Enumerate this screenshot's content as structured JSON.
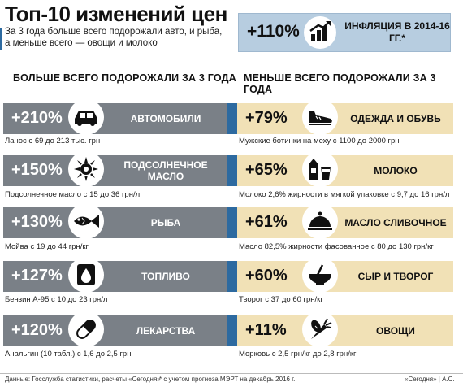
{
  "header": {
    "title": "Топ-10 изменений цен",
    "subtitle": "За 3 года больше всего подорожали авто, и рыба, а меньше всего — овощи и молоко"
  },
  "inflation": {
    "value": "+110%",
    "label": "ИНФЛЯЦИЯ В 2014-16 ГГ.*",
    "icon": "chart-growth-icon"
  },
  "left_column": {
    "heading": "БОЛЬШЕ ВСЕГО ПОДОРОЖАЛИ ЗА 3 ГОДА",
    "items": [
      {
        "pct": "+210%",
        "label": "АВТОМОБИЛИ",
        "icon": "car-icon",
        "note": "Ланос с 69 до 213 тыс. грн"
      },
      {
        "pct": "+150%",
        "label": "ПОДСОЛНЕЧНОЕ МАСЛО",
        "icon": "sunflower-icon",
        "note": "Подсолнечное масло с 15 до 36 грн/л"
      },
      {
        "pct": "+130%",
        "label": "РЫБА",
        "icon": "fish-icon",
        "note": "Мойва с 19 до 44 грн/кг"
      },
      {
        "pct": "+127%",
        "label": "ТОПЛИВО",
        "icon": "fuel-drop-icon",
        "note": "Бензин А-95 с 10 до 23 грн/л"
      },
      {
        "pct": "+120%",
        "label": "ЛЕКАРСТВА",
        "icon": "pill-icon",
        "note": "Анальгин (10 табл.) с 1,6 до 2,5 грн"
      }
    ]
  },
  "right_column": {
    "heading": "МЕНЬШЕ ВСЕГО ПОДОРОЖАЛИ ЗА 3 ГОДА",
    "items": [
      {
        "pct": "+79%",
        "label": "ОДЕЖДА И ОБУВЬ",
        "icon": "shoe-icon",
        "note": "Мужские ботинки на меху с 1100 до 2000 грн"
      },
      {
        "pct": "+65%",
        "label": "МОЛОКО",
        "icon": "milk-icon",
        "note": "Молоко 2,6% жирности в мягкой упаковке с 9,7 до 16 грн/л"
      },
      {
        "pct": "+61%",
        "label": "МАСЛО СЛИВОЧНОЕ",
        "icon": "cloche-icon",
        "note": "Масло 82,5% жирности фасованное с 80 до 130 грн/кг"
      },
      {
        "pct": "+60%",
        "label": "СЫР И ТВОРОГ",
        "icon": "bowl-icon",
        "note": "Творог с 37 до 60 грн/кг"
      },
      {
        "pct": "+11%",
        "label": "ОВОЩИ",
        "icon": "vegetables-icon",
        "note": "Морковь с 2,5 грн/кг до 2,8 грн/кг"
      }
    ]
  },
  "footer": {
    "source": "Данные: Госслужба статистики, расчеты «Сегодня»",
    "footnote": "* с учетом прогноза МЭРТ на декабрь 2016 г.",
    "credit": "«Сегодня» | А.С."
  },
  "colors": {
    "left_bar": "#7a8087",
    "right_bar": "#f1e1b6",
    "accent": "#2d6aa0",
    "inflation_box": "#b7cde0"
  }
}
